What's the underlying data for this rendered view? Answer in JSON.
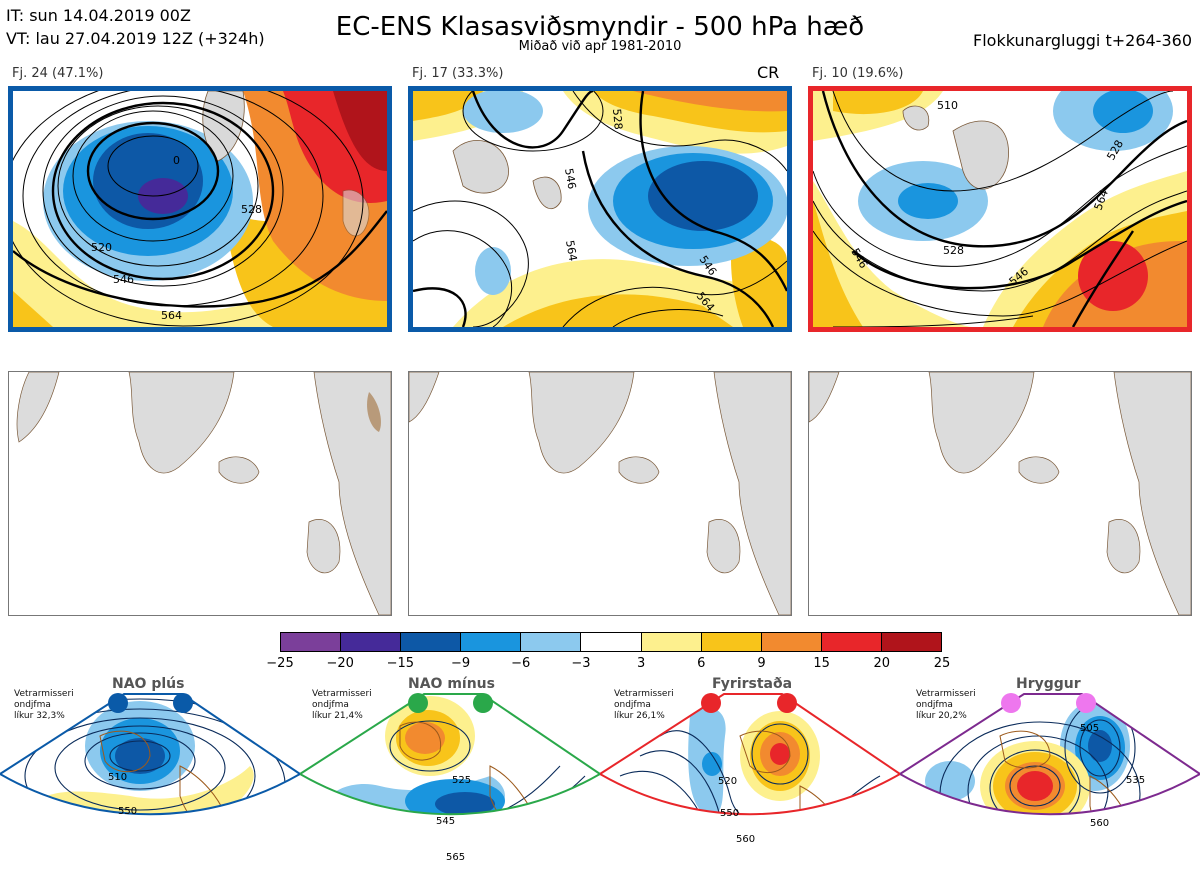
{
  "header": {
    "it": "IT: sun 14.04.2019 00Z",
    "vt": "VT: lau 27.04.2019 12Z  (+324h)",
    "title": "EC-ENS Klasasviðsmyndir - 500 hPa hæð",
    "subtitle": "Miðað við apr 1981-2010",
    "window": "Flokkunargluggi t+264-360"
  },
  "clusters": [
    {
      "label": "Fj. 24 (47.1%)",
      "frame_color": "#0a5aa8",
      "badge": "",
      "contours": [
        "520",
        "528",
        "546",
        "564",
        "0"
      ]
    },
    {
      "label": "Fj. 17 (33.3%)",
      "frame_color": "#0a5aa8",
      "badge": "CR",
      "contours": [
        "546",
        "528",
        "564",
        "546",
        "564"
      ]
    },
    {
      "label": "Fj. 10 (19.6%)",
      "frame_color": "#e8262a",
      "badge": "",
      "contours": [
        "510",
        "528",
        "546",
        "564",
        "546",
        "528"
      ]
    }
  ],
  "colorbar": {
    "ticks": [
      "−25",
      "−20",
      "−15",
      "−9",
      "−6",
      "−3",
      "3",
      "6",
      "9",
      "15",
      "20",
      "25"
    ],
    "colors": [
      "#7b3f9a",
      "#452a99",
      "#0d58a6",
      "#1a95de",
      "#8cc9ee",
      "#ffffff",
      "#fdf08e",
      "#f8c41a",
      "#f28a2f",
      "#e8262a",
      "#b0141b"
    ]
  },
  "regimes": [
    {
      "title": "NAO plús",
      "color": "#0a5aa8",
      "dot_color": "#0a5aa8",
      "text": [
        "Vetrarmisseri",
        "ondjfma",
        "líkur 32,3%"
      ],
      "contours": [
        "510",
        "550"
      ]
    },
    {
      "title": "NAO mínus",
      "color": "#2aa84a",
      "dot_color": "#2aa84a",
      "text": [
        "Vetrarmisseri",
        "ondjfma",
        "líkur 21,4%"
      ],
      "contours": [
        "525",
        "545",
        "565"
      ]
    },
    {
      "title": "Fyrirstaða",
      "color": "#e8262a",
      "dot_color": "#e8262a",
      "text": [
        "Vetrarmisseri",
        "ondjfma",
        "líkur 26,1%"
      ],
      "contours": [
        "520",
        "550",
        "560"
      ]
    },
    {
      "title": "Hryggur",
      "color": "#7d2a8f",
      "dot_color": "#ee77ee",
      "text": [
        "Vetrarmisseri",
        "ondjfma",
        "líkur 20,2%"
      ],
      "contours": [
        "505",
        "535",
        "560"
      ]
    }
  ]
}
